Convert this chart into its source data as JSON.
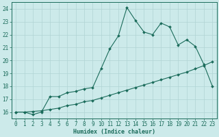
{
  "xlabel": "Humidex (Indice chaleur)",
  "ylabel": "",
  "bg_color": "#cceaea",
  "line_color": "#1a6b5a",
  "grid_color": "#b0d4d4",
  "xlim": [
    -0.5,
    23.5
  ],
  "ylim": [
    15.5,
    24.5
  ],
  "yticks": [
    16,
    17,
    18,
    19,
    20,
    21,
    22,
    23,
    24
  ],
  "xticks": [
    0,
    1,
    2,
    3,
    4,
    5,
    6,
    7,
    8,
    9,
    10,
    11,
    12,
    13,
    14,
    15,
    16,
    17,
    18,
    19,
    20,
    21,
    22,
    23
  ],
  "line1_x": [
    0,
    1,
    2,
    3,
    4,
    5,
    6,
    7,
    8,
    9,
    10,
    11,
    12,
    13,
    14,
    15,
    16,
    17,
    18,
    19,
    20,
    21,
    22,
    23
  ],
  "line1_y": [
    16.0,
    16.0,
    15.8,
    16.0,
    17.2,
    17.2,
    17.5,
    17.6,
    17.8,
    17.9,
    19.4,
    20.9,
    21.9,
    24.1,
    23.1,
    22.2,
    22.0,
    22.9,
    22.6,
    21.2,
    21.6,
    21.1,
    19.7,
    18.0
  ],
  "line2_x": [
    0,
    1,
    2,
    3,
    4,
    5,
    6,
    7,
    8,
    9,
    10,
    11,
    12,
    13,
    14,
    15,
    16,
    17,
    18,
    19,
    20,
    21,
    22,
    23
  ],
  "line2_y": [
    16.0,
    16.0,
    16.05,
    16.1,
    16.2,
    16.3,
    16.5,
    16.6,
    16.8,
    16.9,
    17.1,
    17.3,
    17.5,
    17.7,
    17.9,
    18.1,
    18.3,
    18.5,
    18.7,
    18.9,
    19.1,
    19.35,
    19.6,
    19.9
  ],
  "tick_fontsize": 5.5,
  "xlabel_fontsize": 6.0
}
